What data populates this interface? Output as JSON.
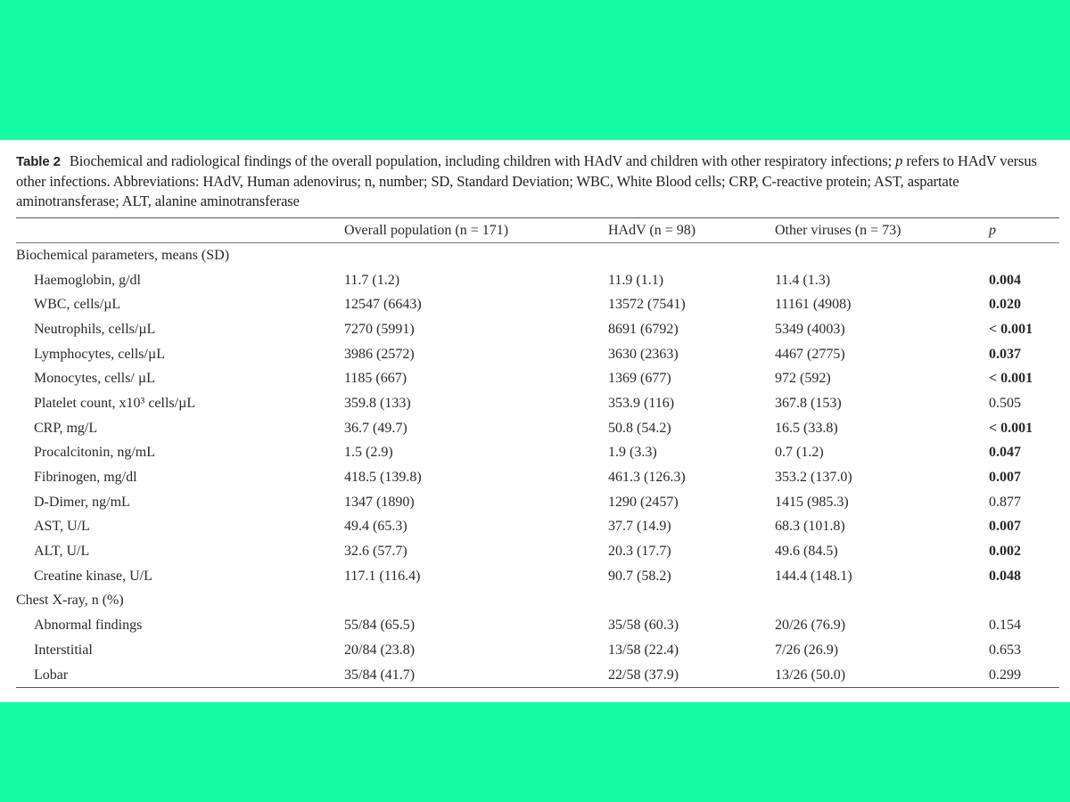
{
  "caption": {
    "label": "Table 2",
    "text_pre": "Biochemical and radiological findings of the overall population, including children with HAdV and children with other respiratory infections;",
    "p_symbol": "p",
    "text_post": "refers to HAdV versus other infections. Abbreviations: HAdV, Human adenovirus; n, number; SD, Standard Deviation; WBC, White Blood cells; CRP, C-reactive protein; AST, aspartate aminotransferase; ALT, alanine aminotransferase"
  },
  "columns": {
    "overall": "Overall population (n = 171)",
    "hadv": "HAdV (n = 98)",
    "other": "Other viruses (n = 73)",
    "p": "p"
  },
  "sections": [
    {
      "title": "Biochemical parameters, means (SD)",
      "rows": [
        {
          "param": "Haemoglobin, g/dl",
          "overall": "11.7 (1.2)",
          "hadv": "11.9 (1.1)",
          "other": "11.4 (1.3)",
          "p": "0.004",
          "sig": true
        },
        {
          "param": "WBC, cells/µL",
          "overall": "12547 (6643)",
          "hadv": "13572 (7541)",
          "other": "11161 (4908)",
          "p": "0.020",
          "sig": true
        },
        {
          "param": "Neutrophils, cells/µL",
          "overall": "7270 (5991)",
          "hadv": "8691 (6792)",
          "other": "5349 (4003)",
          "p": "< 0.001",
          "sig": true
        },
        {
          "param": "Lymphocytes, cells/µL",
          "overall": "3986 (2572)",
          "hadv": "3630 (2363)",
          "other": "4467 (2775)",
          "p": "0.037",
          "sig": true
        },
        {
          "param": "Monocytes, cells/ µL",
          "overall": "1185 (667)",
          "hadv": "1369 (677)",
          "other": "972 (592)",
          "p": "< 0.001",
          "sig": true
        },
        {
          "param": "Platelet count, x10³ cells/µL",
          "overall": "359.8 (133)",
          "hadv": "353.9 (116)",
          "other": "367.8 (153)",
          "p": "0.505",
          "sig": false
        },
        {
          "param": "CRP, mg/L",
          "overall": "36.7 (49.7)",
          "hadv": "50.8 (54.2)",
          "other": "16.5 (33.8)",
          "p": "< 0.001",
          "sig": true
        },
        {
          "param": "Procalcitonin, ng/mL",
          "overall": "1.5 (2.9)",
          "hadv": "1.9 (3.3)",
          "other": "0.7 (1.2)",
          "p": "0.047",
          "sig": true
        },
        {
          "param": "Fibrinogen, mg/dl",
          "overall": "418.5 (139.8)",
          "hadv": "461.3 (126.3)",
          "other": "353.2 (137.0)",
          "p": "0.007",
          "sig": true
        },
        {
          "param": "D-Dimer, ng/mL",
          "overall": "1347 (1890)",
          "hadv": "1290 (2457)",
          "other": "1415 (985.3)",
          "p": "0.877",
          "sig": false
        },
        {
          "param": "AST, U/L",
          "overall": "49.4 (65.3)",
          "hadv": "37.7 (14.9)",
          "other": "68.3 (101.8)",
          "p": "0.007",
          "sig": true
        },
        {
          "param": "ALT, U/L",
          "overall": "32.6 (57.7)",
          "hadv": "20.3 (17.7)",
          "other": "49.6 (84.5)",
          "p": "0.002",
          "sig": true
        },
        {
          "param": "Creatine kinase, U/L",
          "overall": "117.1 (116.4)",
          "hadv": "90.7 (58.2)",
          "other": "144.4 (148.1)",
          "p": "0.048",
          "sig": true
        }
      ]
    },
    {
      "title": "Chest X-ray, n (%)",
      "rows": [
        {
          "param": "Abnormal findings",
          "overall": "55/84 (65.5)",
          "hadv": "35/58 (60.3)",
          "other": "20/26 (76.9)",
          "p": "0.154",
          "sig": false
        },
        {
          "param": "Interstitial",
          "overall": "20/84 (23.8)",
          "hadv": "13/58 (22.4)",
          "other": "7/26 (26.9)",
          "p": "0.653",
          "sig": false
        },
        {
          "param": "Lobar",
          "overall": "35/84 (41.7)",
          "hadv": "22/58 (37.9)",
          "other": "13/26 (50.0)",
          "p": "0.299",
          "sig": false
        }
      ]
    }
  ],
  "colors": {
    "background": "#13fca4",
    "page": "#ffffff",
    "text": "#222222"
  }
}
